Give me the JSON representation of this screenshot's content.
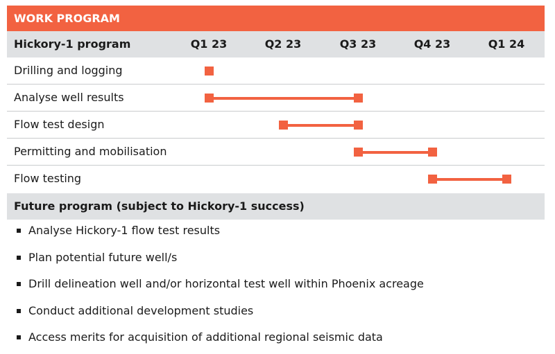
{
  "banner": {
    "title": "WORK PROGRAM"
  },
  "header": {
    "title": "Hickory-1 program",
    "quarters": [
      "Q1 23",
      "Q2 23",
      "Q3 23",
      "Q4 23",
      "Q1 24"
    ]
  },
  "tasks": [
    {
      "label": "Drilling and logging",
      "start": "Q1 23",
      "end": "Q1 23"
    },
    {
      "label": "Analyse well results",
      "start": "Q1 23",
      "end": "Q3 23"
    },
    {
      "label": "Flow test design",
      "start": "Q2 23",
      "end": "Q3 23"
    },
    {
      "label": "Permitting and mobilisation",
      "start": "Q3 23",
      "end": "Q4 23"
    },
    {
      "label": "Flow testing",
      "start": "Q4 23",
      "end": "Q1 24"
    }
  ],
  "future": {
    "title": "Future program (subject to Hickory-1 success)",
    "items": [
      "Analyse Hickory-1 flow test results",
      "Plan potential future well/s",
      "Drill delineation well and/or horizontal test well within Phoenix acreage",
      "Conduct additional development studies",
      "Access merits for acquisition of additional regional seismic data"
    ]
  },
  "colors": {
    "accent": "#f26241",
    "header_bg": "#dfe1e3"
  }
}
